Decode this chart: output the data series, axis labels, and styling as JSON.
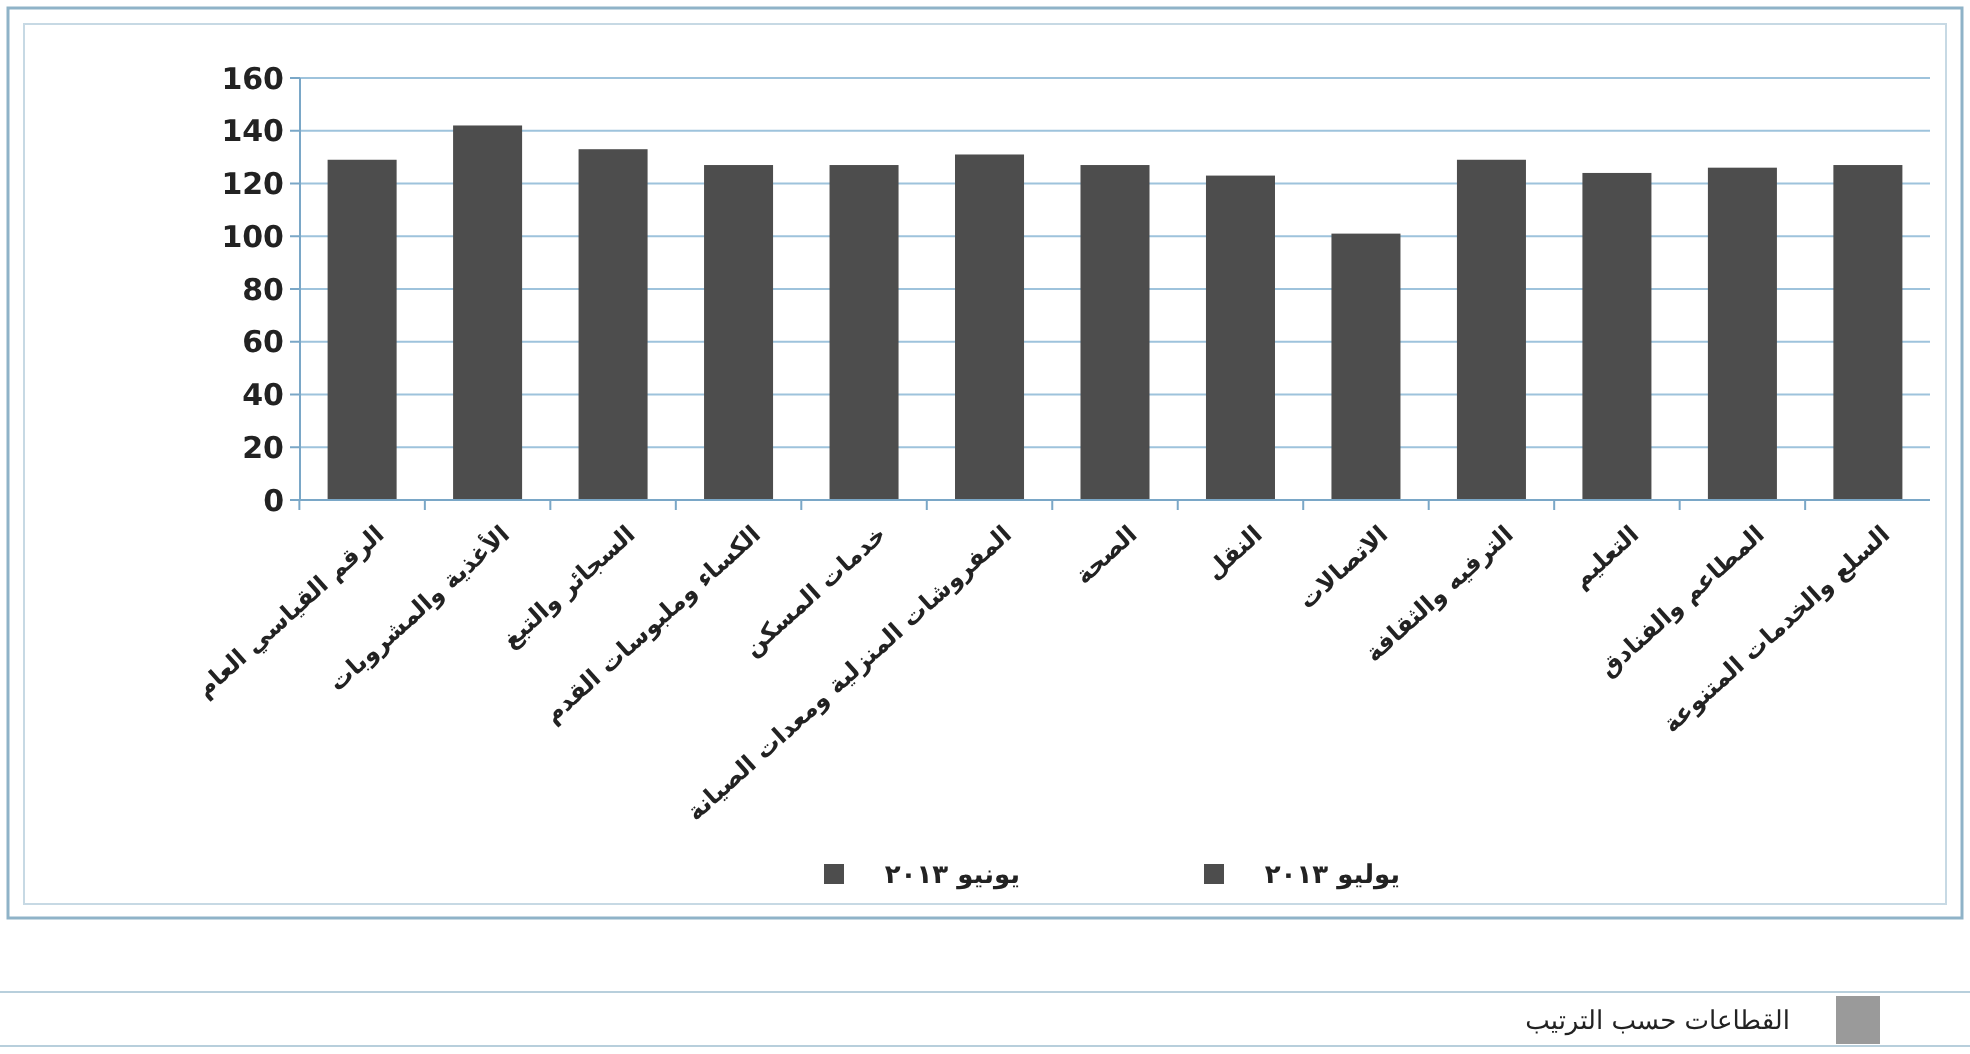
{
  "chart_data": {
    "type": "bar",
    "categories": [
      "الرقم القياسي العام",
      "الأغذية والمشروبات",
      "السجائر والتبغ",
      "الكساء وملبوسات القدم",
      "خدمات المسكن",
      "المفروشات المنزلية ومعدات الصيانة",
      "الصحة",
      "النقل",
      "الاتصالات",
      "الترفيه والثقافة",
      "التعليم",
      "المطاعم والفنادق",
      "السلع والخدمات المتنوعة"
    ],
    "series": [
      {
        "name": "يوليو ٢٠١٣",
        "color": "#4d4d4d",
        "values": [
          129,
          142,
          133,
          127,
          127,
          131,
          127,
          123,
          101,
          129,
          124,
          126,
          127
        ]
      },
      {
        "name": "يونيو ٢٠١٣",
        "color": "#4d4d4d",
        "values": [
          null,
          null,
          null,
          null,
          null,
          null,
          null,
          null,
          null,
          null,
          null,
          null,
          null
        ]
      }
    ],
    "ylim": [
      0,
      160
    ],
    "yticks": [
      0,
      20,
      40,
      60,
      80,
      100,
      120,
      140,
      160
    ],
    "grid": "y",
    "legend": "bottom",
    "annotations": [
      "القطاعات حسب الترتيب"
    ]
  }
}
